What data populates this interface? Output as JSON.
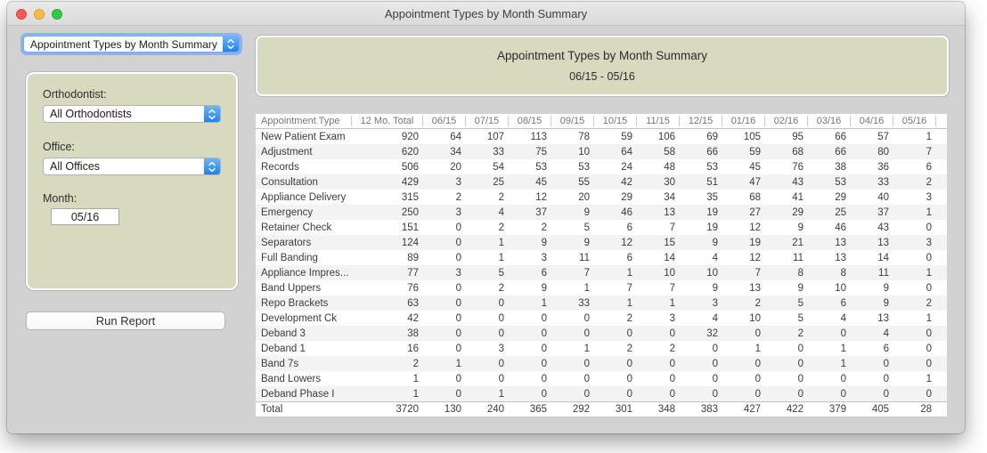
{
  "window": {
    "title": "Appointment Types by Month Summary"
  },
  "sidebar": {
    "report_select_value": "Appointment Types by Month Summary",
    "orthodontist_label": "Orthodontist:",
    "orthodontist_value": "All Orthodontists",
    "office_label": "Office:",
    "office_value": "All Offices",
    "month_label": "Month:",
    "month_value": "05/16",
    "run_button": "Run Report"
  },
  "report": {
    "title": "Appointment Types by Month Summary",
    "subtitle": "06/15 - 05/16"
  },
  "colors": {
    "panel_beige": "#d8dac0",
    "window_gray": "#d2d2d2",
    "stepper_blue": "#2180f6",
    "focus_ring_blue": "#5699fa",
    "traffic_red": "#fc5850",
    "traffic_yellow": "#fdbc40",
    "traffic_green": "#33c748"
  },
  "icons": {
    "select_stepper": "chevron-up-down-icon"
  },
  "table": {
    "columns": [
      "Appointment Type",
      "12 Mo. Total",
      "06/15",
      "07/15",
      "08/15",
      "09/15",
      "10/15",
      "11/15",
      "12/15",
      "01/16",
      "02/16",
      "03/16",
      "04/16",
      "05/16"
    ],
    "rows": [
      {
        "label": "New Patient Exam",
        "values": [
          920,
          64,
          107,
          113,
          78,
          59,
          106,
          69,
          105,
          95,
          66,
          57,
          1
        ]
      },
      {
        "label": "Adjustment",
        "values": [
          620,
          34,
          33,
          75,
          10,
          64,
          58,
          66,
          59,
          68,
          66,
          80,
          7
        ]
      },
      {
        "label": "Records",
        "values": [
          506,
          20,
          54,
          53,
          53,
          24,
          48,
          53,
          45,
          76,
          38,
          36,
          6
        ]
      },
      {
        "label": "Consultation",
        "values": [
          429,
          3,
          25,
          45,
          55,
          42,
          30,
          51,
          47,
          43,
          53,
          33,
          2
        ]
      },
      {
        "label": "Appliance Delivery",
        "values": [
          315,
          2,
          2,
          12,
          20,
          29,
          34,
          35,
          68,
          41,
          29,
          40,
          3
        ]
      },
      {
        "label": "Emergency",
        "values": [
          250,
          3,
          4,
          37,
          9,
          46,
          13,
          19,
          27,
          29,
          25,
          37,
          1
        ]
      },
      {
        "label": "Retainer Check",
        "values": [
          151,
          0,
          2,
          2,
          5,
          6,
          7,
          19,
          12,
          9,
          46,
          43,
          0
        ]
      },
      {
        "label": "Separators",
        "values": [
          124,
          0,
          1,
          9,
          9,
          12,
          15,
          9,
          19,
          21,
          13,
          13,
          3
        ]
      },
      {
        "label": "Full Banding",
        "values": [
          89,
          0,
          1,
          3,
          11,
          6,
          14,
          4,
          12,
          11,
          13,
          14,
          0
        ]
      },
      {
        "label": "Appliance Impres...",
        "values": [
          77,
          3,
          5,
          6,
          7,
          1,
          10,
          10,
          7,
          8,
          8,
          11,
          1
        ]
      },
      {
        "label": "Band Uppers",
        "values": [
          76,
          0,
          2,
          9,
          1,
          7,
          7,
          9,
          13,
          9,
          10,
          9,
          0
        ]
      },
      {
        "label": "Repo Brackets",
        "values": [
          63,
          0,
          0,
          1,
          33,
          1,
          1,
          3,
          2,
          5,
          6,
          9,
          2
        ]
      },
      {
        "label": "Development Ck",
        "values": [
          42,
          0,
          0,
          0,
          0,
          2,
          3,
          4,
          10,
          5,
          4,
          13,
          1
        ]
      },
      {
        "label": "Deband 3",
        "values": [
          38,
          0,
          0,
          0,
          0,
          0,
          0,
          32,
          0,
          2,
          0,
          4,
          0
        ]
      },
      {
        "label": "Deband 1",
        "values": [
          16,
          0,
          3,
          0,
          1,
          2,
          2,
          0,
          1,
          0,
          1,
          6,
          0
        ]
      },
      {
        "label": "Band 7s",
        "values": [
          2,
          1,
          0,
          0,
          0,
          0,
          0,
          0,
          0,
          0,
          1,
          0,
          0
        ]
      },
      {
        "label": "Band Lowers",
        "values": [
          1,
          0,
          0,
          0,
          0,
          0,
          0,
          0,
          0,
          0,
          0,
          0,
          1
        ]
      },
      {
        "label": "Deband Phase I",
        "values": [
          1,
          0,
          1,
          0,
          0,
          0,
          0,
          0,
          0,
          0,
          0,
          0,
          0
        ]
      }
    ],
    "total": {
      "label": "Total",
      "values": [
        3720,
        130,
        240,
        365,
        292,
        301,
        348,
        383,
        427,
        422,
        379,
        405,
        28
      ]
    }
  }
}
